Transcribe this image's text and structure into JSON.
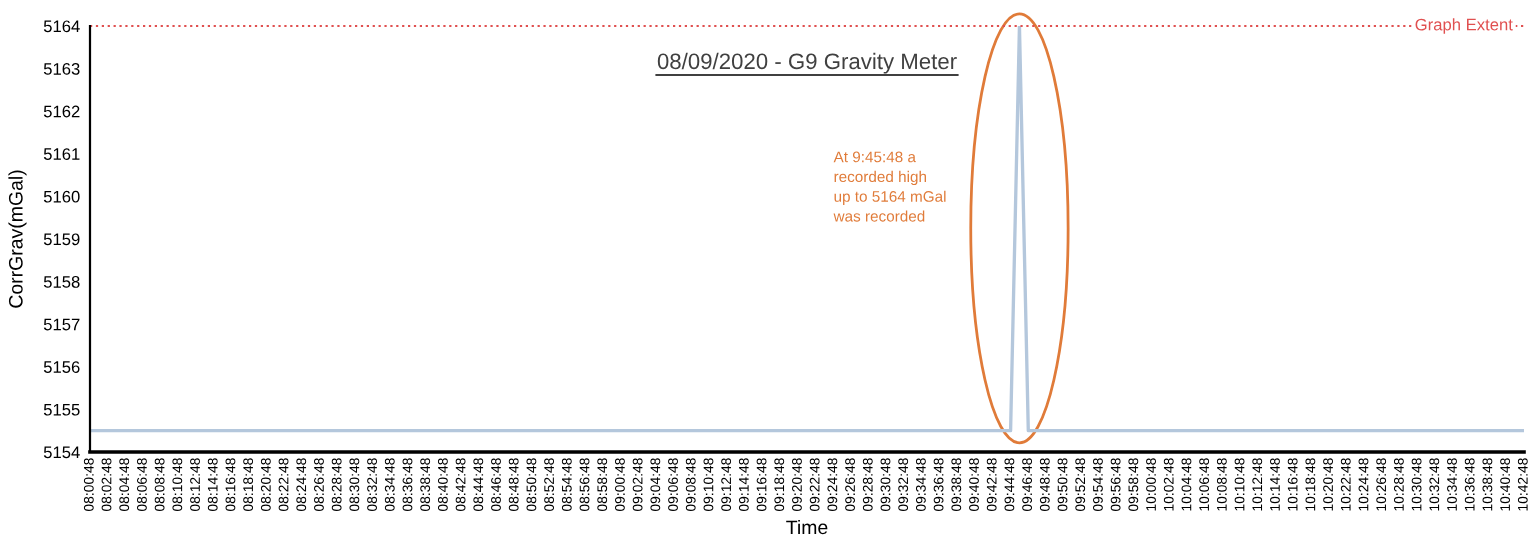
{
  "chart_data": {
    "type": "line",
    "title": "08/09/2020 - G9 Gravity Meter",
    "xlabel": "Time",
    "ylabel": "CorrGrav(mGal)",
    "categories": [
      "08:00:48",
      null,
      "08:02:48",
      null,
      "08:04:48",
      null,
      "08:06:48",
      null,
      "08:08:48",
      null,
      "08:10:48",
      null,
      "08:12:48",
      null,
      "08:14:48",
      null,
      "08:16:48",
      null,
      "08:18:48",
      null,
      "08:20:48",
      null,
      "08:22:48",
      null,
      "08:24:48",
      null,
      "08:26:48",
      null,
      "08:28:48",
      null,
      "08:30:48",
      null,
      "08:32:48",
      null,
      "08:34:48",
      null,
      "08:36:48",
      null,
      "08:38:48",
      null,
      "08:40:48",
      null,
      "08:42:48",
      null,
      "08:44:48",
      null,
      "08:46:48",
      null,
      "08:48:48",
      null,
      "08:50:48",
      null,
      "08:52:48",
      null,
      "08:54:48",
      null,
      "08:56:48",
      null,
      "08:58:48",
      null,
      "09:00:48",
      null,
      "09:02:48",
      null,
      "09:04:48",
      null,
      "09:06:48",
      null,
      "09:08:48",
      null,
      "09:10:48",
      null,
      "09:12:48",
      null,
      "09:14:48",
      null,
      "09:16:48",
      null,
      "09:18:48",
      null,
      "09:20:48",
      null,
      "09:22:48",
      null,
      "09:24:48",
      null,
      "09:26:48",
      null,
      "09:28:48",
      null,
      "09:30:48",
      null,
      "09:32:48",
      null,
      "09:34:48",
      null,
      "09:36:48",
      null,
      "09:38:48",
      null,
      "09:40:48",
      null,
      "09:42:48",
      null,
      "09:44:48",
      null,
      "09:46:48",
      null,
      "09:48:48",
      null,
      "09:50:48",
      null,
      "09:52:48",
      null,
      "09:54:48",
      null,
      "09:56:48",
      null,
      "09:58:48",
      null,
      "10:00:48",
      null,
      "10:02:48",
      null,
      "10:04:48",
      null,
      "10:06:48",
      null,
      "10:08:48",
      null,
      "10:10:48",
      null,
      "10:12:48",
      null,
      "10:14:48",
      null,
      "10:16:48",
      null,
      "10:18:48",
      null,
      "10:20:48",
      null,
      "10:22:48",
      null,
      "10:24:48",
      null,
      "10:26:48",
      null,
      "10:28:48",
      null,
      "10:30:48",
      null,
      "10:32:48",
      null,
      "10:34:48",
      null,
      "10:36:48",
      null,
      "10:38:48",
      null,
      "10:40:48",
      null,
      "10:42:48"
    ],
    "series": [
      {
        "color": "#b4c7dc",
        "values": [
          5154.5,
          5154.5,
          5154.5,
          5154.5,
          5154.5,
          5154.5,
          5154.5,
          5154.5,
          5154.5,
          5154.5,
          5154.5,
          5154.5,
          5154.5,
          5154.5,
          5154.5,
          5154.5,
          5154.5,
          5154.5,
          5154.5,
          5154.5,
          5154.5,
          5154.5,
          5154.5,
          5154.5,
          5154.5,
          5154.5,
          5154.5,
          5154.5,
          5154.5,
          5154.5,
          5154.5,
          5154.5,
          5154.5,
          5154.5,
          5154.5,
          5154.5,
          5154.5,
          5154.5,
          5154.5,
          5154.5,
          5154.5,
          5154.5,
          5154.5,
          5154.5,
          5154.5,
          5154.5,
          5154.5,
          5154.5,
          5154.5,
          5154.5,
          5154.5,
          5154.5,
          5154.5,
          5154.5,
          5154.5,
          5154.5,
          5154.5,
          5154.5,
          5154.5,
          5154.5,
          5154.5,
          5154.5,
          5154.5,
          5154.5,
          5154.5,
          5154.5,
          5154.5,
          5154.5,
          5154.5,
          5154.5,
          5154.5,
          5154.5,
          5154.5,
          5154.5,
          5154.5,
          5154.5,
          5154.5,
          5154.5,
          5154.5,
          5154.5,
          5154.5,
          5154.5,
          5154.5,
          5154.5,
          5154.5,
          5154.5,
          5154.5,
          5154.5,
          5154.5,
          5154.5,
          5154.5,
          5154.5,
          5154.5,
          5154.5,
          5154.5,
          5154.5,
          5154.5,
          5154.5,
          5154.5,
          5154.5,
          5154.5,
          5154.5,
          5154.5,
          5154.5,
          5154.5,
          5164,
          5154.5,
          5154.5,
          5154.5,
          5154.5,
          5154.5,
          5154.5,
          5154.5,
          5154.5,
          5154.5,
          5154.5,
          5154.5,
          5154.5,
          5154.5,
          5154.5,
          5154.5,
          5154.5,
          5154.5,
          5154.5,
          5154.5,
          5154.5,
          5154.5,
          5154.5,
          5154.5,
          5154.5,
          5154.5,
          5154.5,
          5154.5,
          5154.5,
          5154.5,
          5154.5,
          5154.5,
          5154.5,
          5154.5,
          5154.5,
          5154.5,
          5154.5,
          5154.5,
          5154.5,
          5154.5,
          5154.5,
          5154.5,
          5154.5,
          5154.5,
          5154.5,
          5154.5,
          5154.5,
          5154.5,
          5154.5,
          5154.5,
          5154.5,
          5154.5,
          5154.5,
          5154.5,
          5154.5,
          5154.5,
          5154.5,
          5154.5
        ]
      }
    ],
    "ylim": [
      5154,
      5164
    ],
    "yticks": [
      5154,
      5155,
      5156,
      5157,
      5158,
      5159,
      5160,
      5161,
      5162,
      5163,
      5164
    ],
    "ref_lines": [
      {
        "axis": "y",
        "value": 5164,
        "label": "Graph Extent",
        "color": "#e05050",
        "line_style": "dotted"
      }
    ],
    "annotations": [
      "At 9:45:48 a\nrecorded high\nup to 5164 mGal\nwas recorded"
    ],
    "grid": false,
    "marker": "none",
    "line_style": "solid"
  }
}
